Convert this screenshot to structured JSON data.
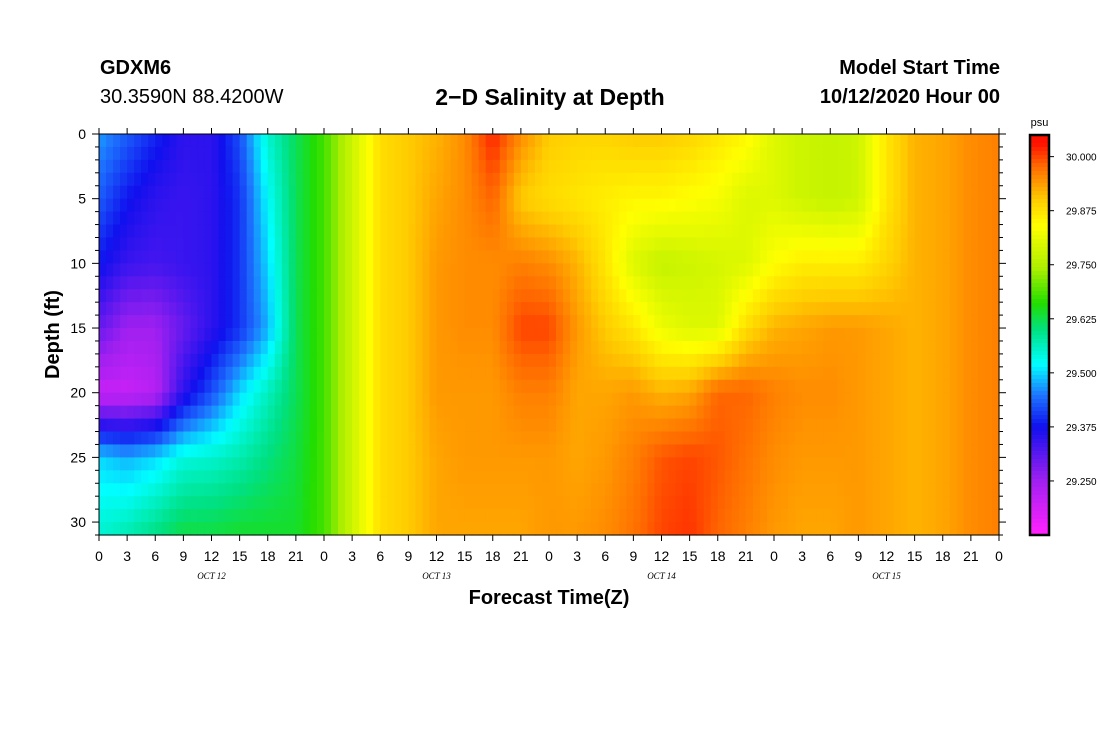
{
  "header": {
    "station": "GDXM6",
    "coordinates": "30.3590N 88.4200W",
    "title": "2−D Salinity at Depth",
    "start_label": "Model Start Time",
    "start_value": "10/12/2020 Hour 00"
  },
  "chart_data": {
    "type": "heatmap",
    "title": "2−D Salinity at Depth",
    "xlabel": "Forecast Time(Z)",
    "ylabel": "Depth (ft)",
    "x_hours_range": [
      0,
      96
    ],
    "y_range": [
      0,
      31
    ],
    "y_inverted": true,
    "x_tick_labels": [
      "0",
      "3",
      "6",
      "9",
      "12",
      "15",
      "18",
      "21",
      "0",
      "3",
      "6",
      "9",
      "12",
      "15",
      "18",
      "21",
      "0",
      "3",
      "6",
      "9",
      "12",
      "15",
      "18",
      "21",
      "0",
      "3",
      "6",
      "9",
      "12",
      "15",
      "18",
      "21",
      "0"
    ],
    "y_tick_labels": [
      "0",
      "5",
      "10",
      "15",
      "20",
      "25",
      "30"
    ],
    "y_ticks": [
      0,
      5,
      10,
      15,
      20,
      25,
      30
    ],
    "date_labels": [
      "OCT 12",
      "OCT 13",
      "OCT 14",
      "OCT 15"
    ],
    "colorbar": {
      "unit": "psu",
      "range": [
        29.125,
        30.05
      ],
      "ticks": [
        30.0,
        29.875,
        29.75,
        29.625,
        29.5,
        29.375,
        29.25
      ],
      "tick_labels": [
        "30.000",
        "29.875",
        "29.750",
        "29.625",
        "29.500",
        "29.375",
        "29.250"
      ]
    },
    "profile_depths": [
      0,
      5,
      10,
      15,
      20,
      25,
      31
    ],
    "profile_times": [
      0,
      3,
      6,
      9,
      12,
      15,
      18,
      21,
      24,
      27,
      30,
      33,
      36,
      39,
      42,
      45,
      48,
      51,
      54,
      57,
      60,
      63,
      66,
      69,
      72,
      75,
      78,
      81,
      84,
      87,
      90,
      93,
      96
    ],
    "salinity_profiles": [
      [
        29.47,
        29.43,
        29.38,
        29.3,
        29.2,
        29.5,
        29.55
      ],
      [
        29.43,
        29.38,
        29.34,
        29.25,
        29.2,
        29.48,
        29.57
      ],
      [
        29.39,
        29.35,
        29.33,
        29.25,
        29.22,
        29.5,
        29.6
      ],
      [
        29.35,
        29.34,
        29.34,
        29.3,
        29.35,
        29.54,
        29.63
      ],
      [
        29.35,
        29.35,
        29.35,
        29.35,
        29.42,
        29.55,
        29.63
      ],
      [
        29.42,
        29.4,
        29.4,
        29.4,
        29.5,
        29.57,
        29.64
      ],
      [
        29.55,
        29.52,
        29.5,
        29.48,
        29.56,
        29.6,
        29.64
      ],
      [
        29.62,
        29.62,
        29.62,
        29.62,
        29.62,
        29.63,
        29.64
      ],
      [
        29.68,
        29.68,
        29.68,
        29.68,
        29.68,
        29.68,
        29.68
      ],
      [
        29.78,
        29.78,
        29.78,
        29.78,
        29.78,
        29.78,
        29.78
      ],
      [
        29.88,
        29.88,
        29.88,
        29.88,
        29.88,
        29.88,
        29.88
      ],
      [
        29.9,
        29.9,
        29.9,
        29.9,
        29.9,
        29.9,
        29.9
      ],
      [
        29.92,
        29.93,
        29.94,
        29.94,
        29.94,
        29.93,
        29.93
      ],
      [
        29.95,
        29.95,
        29.95,
        29.95,
        29.94,
        29.94,
        29.93
      ],
      [
        30.02,
        29.98,
        29.95,
        29.95,
        29.94,
        29.94,
        29.93
      ],
      [
        29.95,
        29.9,
        29.96,
        30.0,
        29.96,
        29.94,
        29.93
      ],
      [
        29.9,
        29.88,
        29.95,
        30.0,
        29.96,
        29.94,
        29.94
      ],
      [
        29.89,
        29.87,
        29.92,
        29.94,
        29.93,
        29.93,
        29.94
      ],
      [
        29.89,
        29.86,
        29.87,
        29.9,
        29.93,
        29.94,
        29.95
      ],
      [
        29.9,
        29.85,
        29.8,
        29.87,
        29.94,
        29.96,
        29.97
      ],
      [
        29.9,
        29.85,
        29.77,
        29.82,
        29.92,
        29.99,
        30.0
      ],
      [
        29.89,
        29.84,
        29.78,
        29.8,
        29.93,
        30.0,
        30.01
      ],
      [
        29.87,
        29.83,
        29.79,
        29.8,
        29.98,
        29.99,
        29.98
      ],
      [
        29.85,
        29.8,
        29.8,
        29.88,
        29.98,
        29.97,
        29.96
      ],
      [
        29.8,
        29.8,
        29.84,
        29.92,
        29.96,
        29.95,
        29.94
      ],
      [
        29.78,
        29.78,
        29.86,
        29.93,
        29.95,
        29.94,
        29.93
      ],
      [
        29.77,
        29.77,
        29.86,
        29.94,
        29.95,
        29.94,
        29.93
      ],
      [
        29.78,
        29.78,
        29.86,
        29.94,
        29.94,
        29.94,
        29.94
      ],
      [
        29.87,
        29.87,
        29.89,
        29.93,
        29.93,
        29.93,
        29.93
      ],
      [
        29.92,
        29.92,
        29.92,
        29.92,
        29.92,
        29.92,
        29.92
      ],
      [
        29.93,
        29.93,
        29.93,
        29.93,
        29.93,
        29.93,
        29.93
      ],
      [
        29.95,
        29.95,
        29.95,
        29.95,
        29.95,
        29.95,
        29.95
      ],
      [
        29.96,
        29.96,
        29.96,
        29.96,
        29.96,
        29.96,
        29.96
      ]
    ]
  }
}
